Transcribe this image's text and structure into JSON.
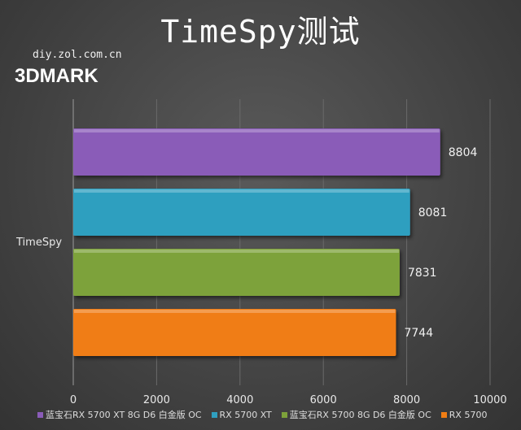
{
  "title": "TimeSpy测试",
  "watermark": "diy.zol.com.cn",
  "logo_text": "3DMARK",
  "chart_data": {
    "type": "bar",
    "orientation": "horizontal",
    "categories": [
      "TimeSpy"
    ],
    "series": [
      {
        "name": "蓝宝石RX 5700 XT 8G D6 白金版 OC",
        "values": [
          8804
        ],
        "color": "#8a5cb8"
      },
      {
        "name": "RX 5700 XT",
        "values": [
          8081
        ],
        "color": "#2f9fbf"
      },
      {
        "name": "蓝宝石RX 5700  8G D6 白金版 OC",
        "values": [
          7831
        ],
        "color": "#7da23a"
      },
      {
        "name": "RX 5700",
        "values": [
          7744
        ],
        "color": "#f07d14"
      }
    ],
    "xlim": [
      0,
      10000
    ],
    "xticks": [
      0,
      2000,
      4000,
      6000,
      8000,
      10000
    ],
    "grid": true,
    "legend_position": "bottom"
  }
}
